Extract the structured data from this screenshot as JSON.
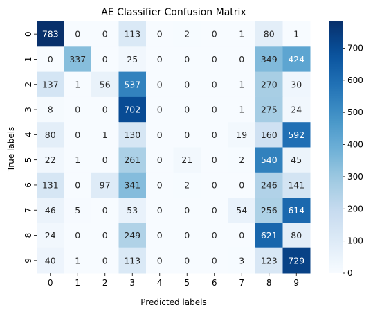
{
  "chart_data": {
    "type": "heatmap",
    "title": "AE Classifier Confusion Matrix",
    "xlabel": "Predicted labels",
    "ylabel": "True labels",
    "x_categories": [
      "0",
      "1",
      "2",
      "3",
      "4",
      "5",
      "6",
      "7",
      "8",
      "9"
    ],
    "y_categories": [
      "0",
      "1",
      "2",
      "3",
      "4",
      "5",
      "6",
      "7",
      "8",
      "9"
    ],
    "values": [
      [
        783,
        0,
        0,
        113,
        0,
        2,
        0,
        1,
        80,
        1
      ],
      [
        0,
        337,
        0,
        25,
        0,
        0,
        0,
        0,
        349,
        424
      ],
      [
        137,
        1,
        56,
        537,
        0,
        0,
        0,
        1,
        270,
        30
      ],
      [
        8,
        0,
        0,
        702,
        0,
        0,
        0,
        1,
        275,
        24
      ],
      [
        80,
        0,
        1,
        130,
        0,
        0,
        0,
        19,
        160,
        592
      ],
      [
        22,
        1,
        0,
        261,
        0,
        21,
        0,
        2,
        540,
        45
      ],
      [
        131,
        0,
        97,
        341,
        0,
        2,
        0,
        0,
        246,
        141
      ],
      [
        46,
        5,
        0,
        53,
        0,
        0,
        0,
        54,
        256,
        614
      ],
      [
        24,
        0,
        0,
        249,
        0,
        0,
        0,
        0,
        621,
        80
      ],
      [
        40,
        1,
        0,
        113,
        0,
        0,
        0,
        3,
        123,
        729
      ]
    ],
    "colormap": "Blues",
    "vmin": 0,
    "vmax": 783,
    "colorbar_ticks": [
      0,
      100,
      200,
      300,
      400,
      500,
      600,
      700
    ],
    "colorbar_tick_labels": [
      "0",
      "100",
      "200",
      "300",
      "400",
      "500",
      "600",
      "700"
    ],
    "text_color_dark": "#262626",
    "text_color_light": "#ffffff"
  }
}
